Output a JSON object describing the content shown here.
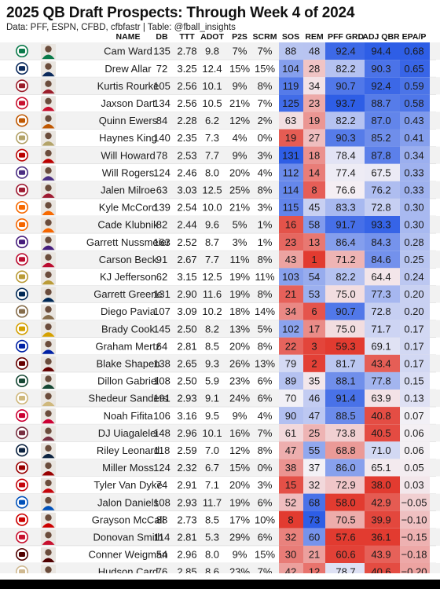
{
  "title": "2025 QB Draft Prospects: Through Week 4 of 2024",
  "subtitle": "Data: PFF, ESPN, CFBD, cfbfastr | Table: @fball_insights",
  "chart_data": {
    "type": "table",
    "columns": [
      "NAME",
      "DB",
      "TTT",
      "ADOT",
      "P2S",
      "SCRM",
      "SOS",
      "REM",
      "PFF GRD",
      "ADJ QBR",
      "EPA/P"
    ],
    "rows": [
      {
        "school_icon": "miami-logo",
        "name": "Cam Ward",
        "db": 135,
        "ttt": "2.78",
        "adot": "9.8",
        "p2s": "7%",
        "scrm": "7%",
        "sos": 88,
        "rem": 48,
        "pff": "92.4",
        "qbr": "94.4",
        "epa": "0.68"
      },
      {
        "school_icon": "penn-state-logo",
        "name": "Drew Allar",
        "db": 72,
        "ttt": "3.25",
        "adot": "12.4",
        "p2s": "15%",
        "scrm": "15%",
        "sos": 104,
        "rem": 28,
        "pff": "82.2",
        "qbr": "90.3",
        "epa": "0.65"
      },
      {
        "school_icon": "indiana-logo",
        "name": "Kurtis Rourke",
        "db": 105,
        "ttt": "2.56",
        "adot": "10.1",
        "p2s": "9%",
        "scrm": "8%",
        "sos": 119,
        "rem": 34,
        "pff": "90.7",
        "qbr": "92.4",
        "epa": "0.59"
      },
      {
        "school_icon": "ole-miss-logo",
        "name": "Jaxson Dart",
        "db": 134,
        "ttt": "2.56",
        "adot": "10.5",
        "p2s": "21%",
        "scrm": "7%",
        "sos": 125,
        "rem": 23,
        "pff": "93.7",
        "qbr": "88.7",
        "epa": "0.58"
      },
      {
        "school_icon": "texas-logo",
        "name": "Quinn Ewers",
        "db": 84,
        "ttt": "2.28",
        "adot": "6.2",
        "p2s": "12%",
        "scrm": "2%",
        "sos": 63,
        "rem": 19,
        "pff": "82.2",
        "qbr": "87.0",
        "epa": "0.43"
      },
      {
        "school_icon": "georgia-tech-logo",
        "name": "Haynes King",
        "db": 140,
        "ttt": "2.35",
        "adot": "7.3",
        "p2s": "4%",
        "scrm": "0%",
        "sos": 19,
        "rem": 27,
        "pff": "90.3",
        "qbr": "85.2",
        "epa": "0.41"
      },
      {
        "school_icon": "ohio-state-logo",
        "name": "Will Howard",
        "db": 78,
        "ttt": "2.53",
        "adot": "7.7",
        "p2s": "9%",
        "scrm": "3%",
        "sos": 131,
        "rem": 18,
        "pff": "78.4",
        "qbr": "87.8",
        "epa": "0.34"
      },
      {
        "school_icon": "washington-logo",
        "name": "Will Rogers",
        "db": 124,
        "ttt": "2.46",
        "adot": "8.0",
        "p2s": "20%",
        "scrm": "4%",
        "sos": 112,
        "rem": 14,
        "pff": "77.4",
        "qbr": "67.5",
        "epa": "0.33"
      },
      {
        "school_icon": "alabama-logo",
        "name": "Jalen Milroe",
        "db": 63,
        "ttt": "3.03",
        "adot": "12.5",
        "p2s": "25%",
        "scrm": "8%",
        "sos": 114,
        "rem": 8,
        "pff": "76.6",
        "qbr": "76.2",
        "epa": "0.33"
      },
      {
        "school_icon": "syracuse-logo",
        "name": "Kyle McCord",
        "db": 139,
        "ttt": "2.54",
        "adot": "10.0",
        "p2s": "21%",
        "scrm": "3%",
        "sos": 115,
        "rem": 45,
        "pff": "83.3",
        "qbr": "72.8",
        "epa": "0.30"
      },
      {
        "school_icon": "clemson-logo",
        "name": "Cade Klubnik",
        "db": 82,
        "ttt": "2.44",
        "adot": "9.6",
        "p2s": "5%",
        "scrm": "1%",
        "sos": 16,
        "rem": 58,
        "pff": "91.7",
        "qbr": "93.3",
        "epa": "0.30"
      },
      {
        "school_icon": "lsu-logo",
        "name": "Garrett Nussmeier",
        "db": 163,
        "ttt": "2.52",
        "adot": "8.7",
        "p2s": "3%",
        "scrm": "1%",
        "sos": 23,
        "rem": 13,
        "pff": "86.4",
        "qbr": "84.3",
        "epa": "0.28"
      },
      {
        "school_icon": "georgia-logo",
        "name": "Carson Beck",
        "db": 91,
        "ttt": "2.67",
        "adot": "7.7",
        "p2s": "11%",
        "scrm": "8%",
        "sos": 43,
        "rem": 1,
        "pff": "71.2",
        "qbr": "84.6",
        "epa": "0.25"
      },
      {
        "school_icon": "ucf-logo",
        "name": "KJ Jefferson",
        "db": 62,
        "ttt": "3.15",
        "adot": "12.5",
        "p2s": "19%",
        "scrm": "11%",
        "sos": 103,
        "rem": 54,
        "pff": "82.2",
        "qbr": "64.4",
        "epa": "0.24"
      },
      {
        "school_icon": "west-virginia-logo",
        "name": "Garrett Greene",
        "db": 131,
        "ttt": "2.90",
        "adot": "11.6",
        "p2s": "19%",
        "scrm": "8%",
        "sos": 21,
        "rem": 53,
        "pff": "75.0",
        "qbr": "77.3",
        "epa": "0.20"
      },
      {
        "school_icon": "vanderbilt-logo",
        "name": "Diego Pavia",
        "db": 107,
        "ttt": "3.09",
        "adot": "10.2",
        "p2s": "18%",
        "scrm": "14%",
        "sos": 34,
        "rem": 6,
        "pff": "90.7",
        "qbr": "72.8",
        "epa": "0.20"
      },
      {
        "school_icon": "missouri-logo",
        "name": "Brady Cook",
        "db": 145,
        "ttt": "2.50",
        "adot": "8.2",
        "p2s": "13%",
        "scrm": "5%",
        "sos": 102,
        "rem": 17,
        "pff": "75.0",
        "qbr": "71.7",
        "epa": "0.17"
      },
      {
        "school_icon": "florida-logo",
        "name": "Graham Mertz",
        "db": 64,
        "ttt": "2.81",
        "adot": "8.5",
        "p2s": "20%",
        "scrm": "8%",
        "sos": 22,
        "rem": 3,
        "pff": "59.3",
        "qbr": "69.1",
        "epa": "0.17"
      },
      {
        "school_icon": "mississippi-state-logo",
        "name": "Blake Shapen",
        "db": 138,
        "ttt": "2.65",
        "adot": "9.3",
        "p2s": "26%",
        "scrm": "13%",
        "sos": 79,
        "rem": 2,
        "pff": "81.7",
        "qbr": "43.4",
        "epa": "0.17"
      },
      {
        "school_icon": "oregon-logo",
        "name": "Dillon Gabriel",
        "db": 108,
        "ttt": "2.50",
        "adot": "5.9",
        "p2s": "23%",
        "scrm": "6%",
        "sos": 89,
        "rem": 35,
        "pff": "88.1",
        "qbr": "77.8",
        "epa": "0.15"
      },
      {
        "school_icon": "colorado-logo",
        "name": "Shedeur Sanders",
        "db": 191,
        "ttt": "2.93",
        "adot": "9.1",
        "p2s": "24%",
        "scrm": "6%",
        "sos": 70,
        "rem": 46,
        "pff": "91.4",
        "qbr": "63.9",
        "epa": "0.13"
      },
      {
        "school_icon": "arizona-logo",
        "name": "Noah Fifita",
        "db": 106,
        "ttt": "3.16",
        "adot": "9.5",
        "p2s": "9%",
        "scrm": "4%",
        "sos": 90,
        "rem": 47,
        "pff": "88.5",
        "qbr": "40.8",
        "epa": "0.07"
      },
      {
        "school_icon": "florida-state-logo",
        "name": "DJ Uiagalelei",
        "db": 148,
        "ttt": "2.96",
        "adot": "10.1",
        "p2s": "16%",
        "scrm": "7%",
        "sos": 61,
        "rem": 25,
        "pff": "73.8",
        "qbr": "40.5",
        "epa": "0.06"
      },
      {
        "school_icon": "notre-dame-logo",
        "name": "Riley Leonard",
        "db": 118,
        "ttt": "2.59",
        "adot": "7.0",
        "p2s": "12%",
        "scrm": "8%",
        "sos": 47,
        "rem": 55,
        "pff": "68.8",
        "qbr": "71.0",
        "epa": "0.06"
      },
      {
        "school_icon": "usc-logo",
        "name": "Miller Moss",
        "db": 124,
        "ttt": "2.32",
        "adot": "6.7",
        "p2s": "15%",
        "scrm": "0%",
        "sos": 38,
        "rem": 37,
        "pff": "86.0",
        "qbr": "65.1",
        "epa": "0.05"
      },
      {
        "school_icon": "wisconsin-logo",
        "name": "Tyler Van Dyke",
        "db": 74,
        "ttt": "2.91",
        "adot": "7.1",
        "p2s": "20%",
        "scrm": "3%",
        "sos": 15,
        "rem": 32,
        "pff": "72.9",
        "qbr": "38.0",
        "epa": "0.03"
      },
      {
        "school_icon": "kansas-logo",
        "name": "Jalon Daniels",
        "db": 108,
        "ttt": "2.93",
        "adot": "11.7",
        "p2s": "19%",
        "scrm": "6%",
        "sos": 52,
        "rem": 68,
        "pff": "58.0",
        "qbr": "42.9",
        "epa": "−0.05"
      },
      {
        "school_icon": "nc-state-logo",
        "name": "Grayson McCall",
        "db": 88,
        "ttt": "2.73",
        "adot": "8.5",
        "p2s": "17%",
        "scrm": "10%",
        "sos": 8,
        "rem": 73,
        "pff": "70.5",
        "qbr": "39.9",
        "epa": "−0.10"
      },
      {
        "school_icon": "houston-logo",
        "name": "Donovan Smith",
        "db": 114,
        "ttt": "2.81",
        "adot": "5.3",
        "p2s": "29%",
        "scrm": "6%",
        "sos": 32,
        "rem": 60,
        "pff": "57.6",
        "qbr": "36.1",
        "epa": "−0.15"
      },
      {
        "school_icon": "texas-am-logo",
        "name": "Conner Weigman",
        "db": 54,
        "ttt": "2.96",
        "adot": "8.0",
        "p2s": "9%",
        "scrm": "15%",
        "sos": 30,
        "rem": 21,
        "pff": "60.6",
        "qbr": "43.9",
        "epa": "−0.18"
      },
      {
        "school_icon": "purdue-logo",
        "name": "Hudson Card",
        "db": 76,
        "ttt": "2.85",
        "adot": "8.6",
        "p2s": "23%",
        "scrm": "7%",
        "sos": 42,
        "rem": 12,
        "pff": "78.7",
        "qbr": "40.6",
        "epa": "−0.20"
      }
    ]
  },
  "logo_colors": [
    "#0a7a4a",
    "#0b2a5c",
    "#9b1d2a",
    "#c8102e",
    "#bf5700",
    "#b3a369",
    "#bb0000",
    "#4b2e83",
    "#9e1b32",
    "#f76900",
    "#f56600",
    "#461d7c",
    "#ba0c2f",
    "#ba9b37",
    "#002855",
    "#866d4b",
    "#d4a000",
    "#0021a5",
    "#660000",
    "#154733",
    "#cfb87c",
    "#cc0033",
    "#782f40",
    "#0c2340",
    "#990000",
    "#c5050c",
    "#0051ba",
    "#cc0000",
    "#c8102e",
    "#500000",
    "#cfb991"
  ],
  "colors": {
    "good": "#2e5ee6",
    "mid": "#f4f1f6",
    "bad": "#e23b30"
  }
}
